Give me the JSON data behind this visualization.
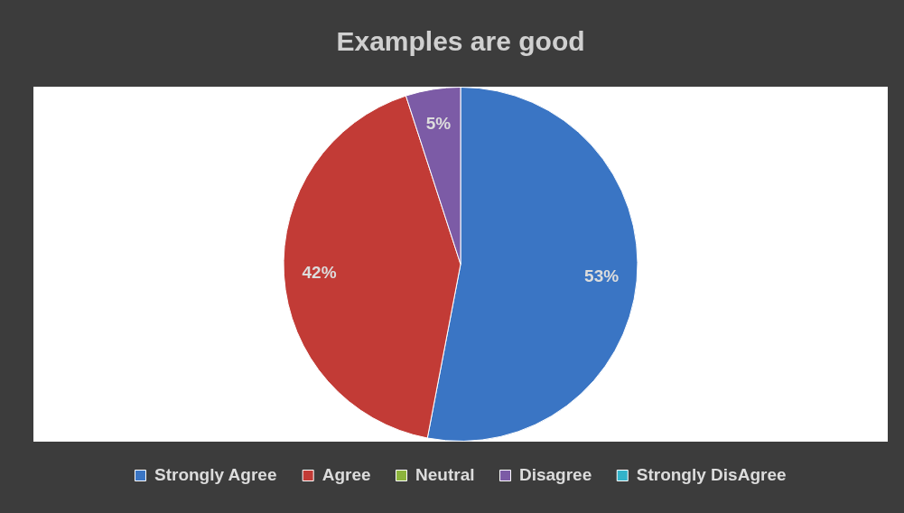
{
  "chart_data": {
    "type": "pie",
    "title": "Examples are good",
    "categories": [
      "Strongly Agree",
      "Agree",
      "Neutral",
      "Disagree",
      "Strongly DisAgree"
    ],
    "values": [
      53,
      42,
      0,
      5,
      0
    ],
    "colors": [
      "#3a75c4",
      "#c23b36",
      "#8cb43c",
      "#7c5ba6",
      "#33b3c9"
    ],
    "value_labels": [
      "53%",
      "42%",
      null,
      "5%",
      null
    ],
    "legend": "bottom"
  }
}
